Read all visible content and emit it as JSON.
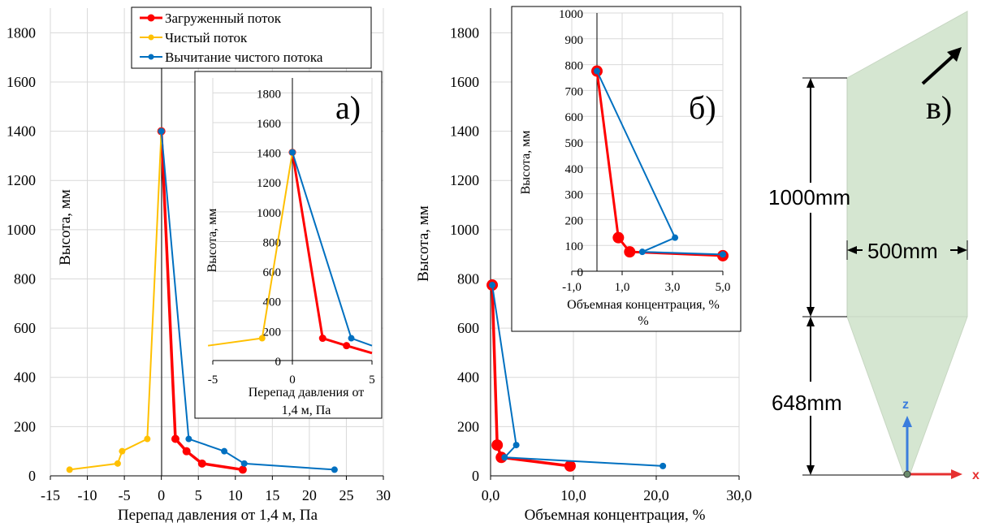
{
  "chart_data": [
    {
      "id": "left",
      "type": "line",
      "title": "",
      "xlabel": "Перепад давления от 1,4 м, Па",
      "ylabel": "Высота, мм",
      "xlim": [
        -15,
        30
      ],
      "ylim": [
        0,
        1900
      ],
      "xticks": [
        "-15",
        "-10",
        "-5",
        "0",
        "5",
        "10",
        "15",
        "20",
        "25",
        "30"
      ],
      "yticks": [
        "0",
        "200",
        "400",
        "600",
        "800",
        "1000",
        "1200",
        "1400",
        "1600",
        "1800"
      ],
      "grid": true,
      "legend": "top",
      "series": [
        {
          "name": "Загруженный поток",
          "color": "#ff0000",
          "x": [
            0,
            1.9,
            3.4,
            5.5,
            11.0
          ],
          "y": [
            1400,
            150,
            100,
            50,
            25
          ]
        },
        {
          "name": "Чистый поток",
          "color": "#ffc000",
          "x": [
            0,
            -1.9,
            -5.3,
            -5.9,
            -12.4
          ],
          "y": [
            1400,
            150,
            100,
            50,
            25
          ]
        },
        {
          "name": "Вычитание чистого потока",
          "color": "#0070c0",
          "x": [
            0,
            3.7,
            8.5,
            11.2,
            23.4
          ],
          "y": [
            1400,
            150,
            100,
            50,
            25
          ]
        }
      ]
    },
    {
      "id": "left-inset",
      "type": "line",
      "panel_label": "а)",
      "xlabel": "Перепад давления от 1,4 м, Па",
      "ylabel": "Высота, мм",
      "xlim": [
        -5,
        5
      ],
      "ylim": [
        0,
        1900
      ],
      "xticks": [
        "-5",
        "0",
        "5"
      ],
      "yticks": [
        "0",
        "200",
        "400",
        "600",
        "800",
        "1000",
        "1200",
        "1400",
        "1600",
        "1800"
      ],
      "grid": true,
      "series": [
        {
          "name": "Загруженный поток",
          "color": "#ff0000",
          "x": [
            0,
            1.9,
            3.4,
            5.5
          ],
          "y": [
            1400,
            150,
            100,
            50
          ]
        },
        {
          "name": "Чистый поток",
          "color": "#ffc000",
          "x": [
            0,
            -1.9,
            -5.3
          ],
          "y": [
            1400,
            150,
            100
          ]
        },
        {
          "name": "Вычитание чистого потока",
          "color": "#0070c0",
          "x": [
            0,
            3.7,
            8.5
          ],
          "y": [
            1400,
            150,
            100
          ]
        }
      ]
    },
    {
      "id": "right",
      "type": "line",
      "xlabel": "Объемная концентрация, %",
      "ylabel": "Высота, мм",
      "xlim": [
        0,
        30
      ],
      "ylim": [
        0,
        1900
      ],
      "xticks": [
        "0,0",
        "10,0",
        "20,0",
        "30,0"
      ],
      "yticks": [
        "0",
        "200",
        "400",
        "600",
        "800",
        "1000",
        "1200",
        "1400",
        "1600",
        "1800"
      ],
      "grid": true,
      "series": [
        {
          "name": "Загруженный поток",
          "color": "#ff0000",
          "x": [
            0.2,
            0.8,
            1.3,
            9.6
          ],
          "y": [
            775,
            125,
            75,
            40
          ]
        },
        {
          "name": "Вычитание чистого потока",
          "color": "#0070c0",
          "x": [
            0.2,
            3.1,
            1.7,
            20.8
          ],
          "y": [
            775,
            125,
            75,
            40
          ]
        }
      ]
    },
    {
      "id": "right-inset",
      "type": "line",
      "panel_label": "б)",
      "xlabel": "Объемная концентрация, %",
      "xlabel_line2": "%",
      "ylabel": "Высота, мм",
      "xlim": [
        -1,
        5
      ],
      "ylim": [
        0,
        1000
      ],
      "xticks": [
        "-1,0",
        "1,0",
        "3,0",
        "5,0"
      ],
      "yticks": [
        "0",
        "100",
        "200",
        "300",
        "400",
        "500",
        "600",
        "700",
        "800",
        "900",
        "1000"
      ],
      "grid": true,
      "series": [
        {
          "name": "Загруженный поток",
          "color": "#ff0000",
          "x": [
            0.0,
            0.85,
            1.3,
            5.0
          ],
          "y": [
            775,
            130,
            75,
            60
          ]
        },
        {
          "name": "Вычитание чистого потока",
          "color": "#0070c0",
          "x": [
            0.0,
            3.1,
            1.8,
            5.0
          ],
          "y": [
            775,
            130,
            75,
            65
          ]
        }
      ]
    }
  ],
  "diagram": {
    "panel_label": "в)",
    "dim_top": "1000mm",
    "dim_width": "500mm",
    "dim_bottom": "648mm",
    "axis_z": "z",
    "axis_x": "x"
  }
}
